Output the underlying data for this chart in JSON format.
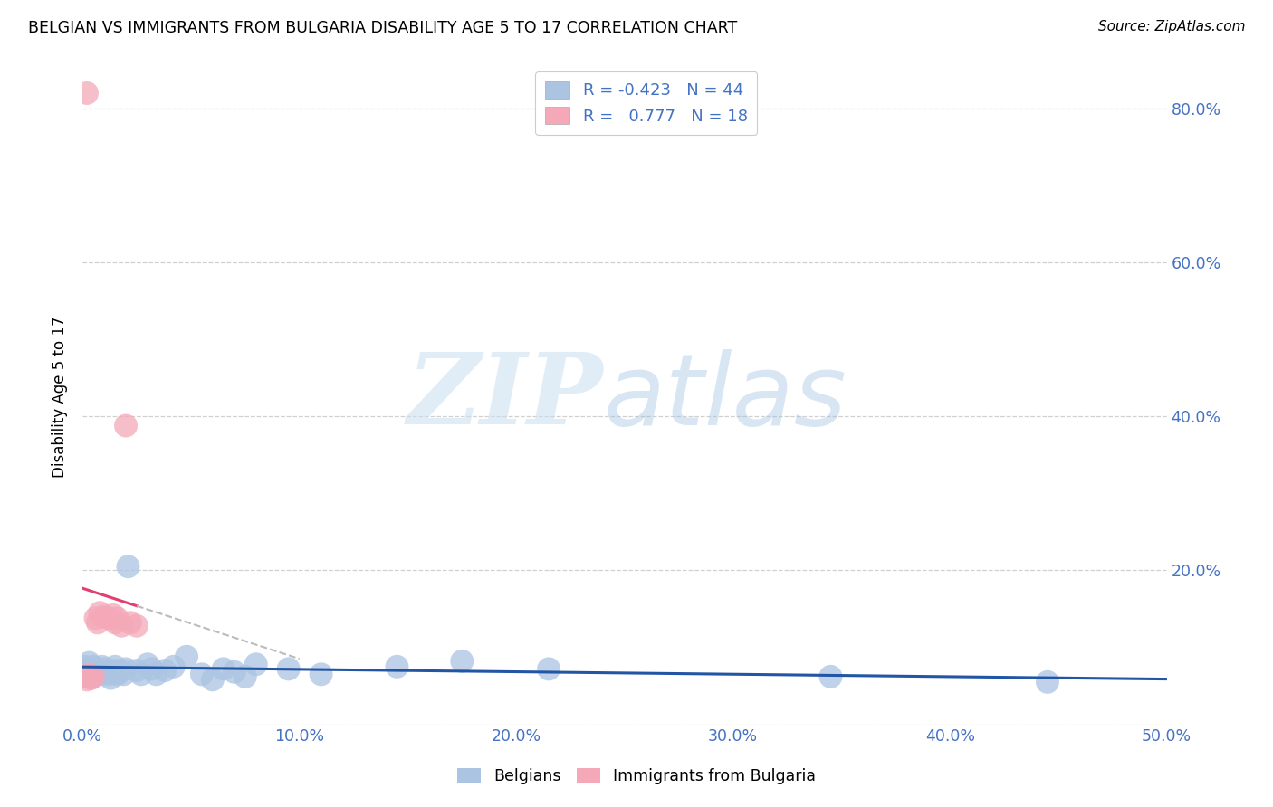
{
  "title": "BELGIAN VS IMMIGRANTS FROM BULGARIA DISABILITY AGE 5 TO 17 CORRELATION CHART",
  "source": "Source: ZipAtlas.com",
  "ylabel": "Disability Age 5 to 17",
  "xlim": [
    0.0,
    0.5
  ],
  "ylim": [
    0.0,
    0.85
  ],
  "xticks": [
    0.0,
    0.1,
    0.2,
    0.3,
    0.4,
    0.5
  ],
  "yticks": [
    0.0,
    0.2,
    0.4,
    0.6,
    0.8
  ],
  "belgian_color": "#aac4e2",
  "bulgarian_color": "#f4a8b8",
  "belgian_line_color": "#2255a4",
  "bulgarian_line_color": "#e04070",
  "r_belgian": -0.423,
  "n_belgian": 44,
  "r_bulgarian": 0.777,
  "n_bulgarian": 18,
  "legend_label1": "Belgians",
  "legend_label2": "Immigrants from Bulgaria",
  "background_color": "#ffffff",
  "grid_color": "#d0d0d0",
  "axis_color": "#4472c4",
  "belgian_x": [
    0.001,
    0.002,
    0.003,
    0.003,
    0.004,
    0.005,
    0.005,
    0.006,
    0.007,
    0.008,
    0.009,
    0.01,
    0.011,
    0.012,
    0.013,
    0.014,
    0.015,
    0.016,
    0.017,
    0.018,
    0.019,
    0.02,
    0.021,
    0.025,
    0.027,
    0.03,
    0.032,
    0.034,
    0.038,
    0.042,
    0.048,
    0.055,
    0.06,
    0.065,
    0.07,
    0.075,
    0.08,
    0.095,
    0.11,
    0.145,
    0.175,
    0.215,
    0.345,
    0.445
  ],
  "belgian_y": [
    0.075,
    0.072,
    0.068,
    0.08,
    0.06,
    0.075,
    0.068,
    0.072,
    0.07,
    0.065,
    0.075,
    0.072,
    0.068,
    0.065,
    0.06,
    0.07,
    0.075,
    0.065,
    0.068,
    0.07,
    0.065,
    0.072,
    0.205,
    0.07,
    0.065,
    0.078,
    0.072,
    0.065,
    0.07,
    0.075,
    0.088,
    0.065,
    0.058,
    0.072,
    0.068,
    0.062,
    0.078,
    0.072,
    0.065,
    0.075,
    0.082,
    0.072,
    0.062,
    0.055
  ],
  "bulgarian_x": [
    0.001,
    0.002,
    0.002,
    0.003,
    0.004,
    0.005,
    0.006,
    0.007,
    0.008,
    0.01,
    0.012,
    0.014,
    0.015,
    0.016,
    0.018,
    0.02,
    0.022,
    0.025
  ],
  "bulgarian_y": [
    0.062,
    0.058,
    0.82,
    0.065,
    0.06,
    0.062,
    0.138,
    0.132,
    0.145,
    0.14,
    0.138,
    0.142,
    0.132,
    0.138,
    0.128,
    0.388,
    0.132,
    0.128
  ]
}
